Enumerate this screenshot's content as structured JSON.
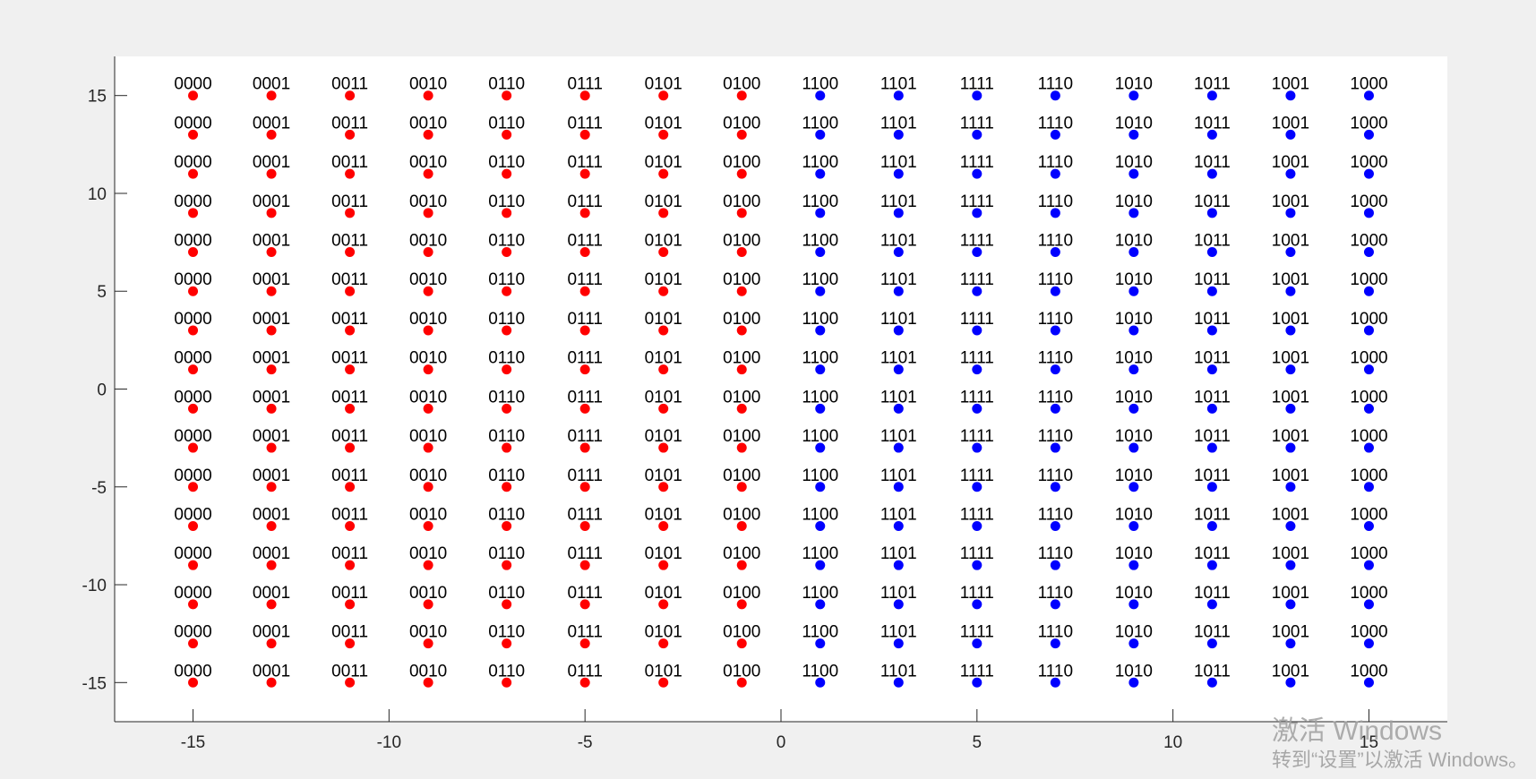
{
  "chart_data": {
    "type": "scatter",
    "title": "",
    "xlabel": "",
    "ylabel": "",
    "xlim": [
      -17,
      17
    ],
    "ylim": [
      -17,
      17
    ],
    "xticks": [
      -15,
      -10,
      -5,
      0,
      5,
      10,
      15
    ],
    "yticks": [
      -15,
      -10,
      -5,
      0,
      5,
      10,
      15
    ],
    "grid": false,
    "legend": "none",
    "x": [
      -15,
      -13,
      -11,
      -9,
      -7,
      -5,
      -3,
      -1,
      1,
      3,
      5,
      7,
      9,
      11,
      13,
      15
    ],
    "y": [
      15,
      13,
      11,
      9,
      7,
      5,
      3,
      1,
      -1,
      -3,
      -5,
      -7,
      -9,
      -11,
      -13,
      -15
    ],
    "column_labels": [
      "0000",
      "0001",
      "0011",
      "0010",
      "0110",
      "0111",
      "0101",
      "0100",
      "1100",
      "1101",
      "1111",
      "1110",
      "1010",
      "1011",
      "1001",
      "1000"
    ],
    "series": [
      {
        "color": "#ff0000",
        "x": [
          -15,
          -13,
          -11,
          -9,
          -7,
          -5,
          -3,
          -1
        ]
      },
      {
        "color": "#0000ff",
        "x": [
          1,
          3,
          5,
          7,
          9,
          11,
          13,
          15
        ]
      }
    ]
  },
  "watermark": {
    "line1": "激活 Windows",
    "line2": "转到“设置”以激活 Windows。"
  }
}
